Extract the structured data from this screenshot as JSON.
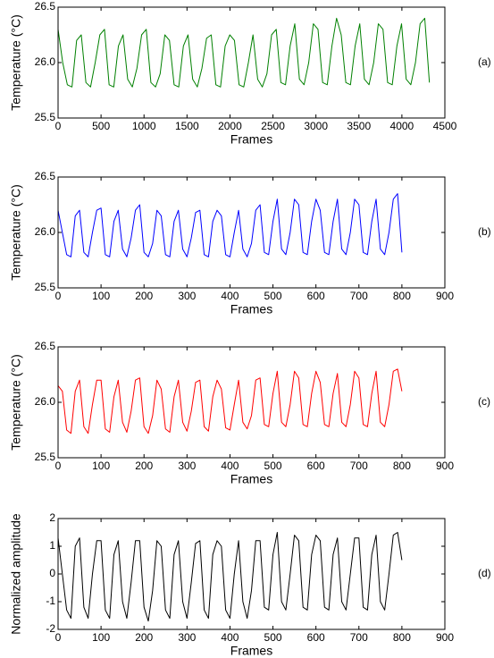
{
  "chart_data": [
    {
      "type": "line",
      "label": "(a)",
      "xlabel": "Frames",
      "ylabel": "Temperature (°C)",
      "color": "#008000",
      "xlim": [
        0,
        4500
      ],
      "xticks": [
        0,
        500,
        1000,
        1500,
        2000,
        2500,
        3000,
        3500,
        4000,
        4500
      ],
      "ylim": [
        25.5,
        26.5
      ],
      "yticks": [
        25.5,
        {
          "value": 26,
          "label": "26.0"
        },
        26.5
      ],
      "x": [
        0,
        54,
        108,
        162,
        216,
        270,
        324,
        378,
        432,
        486,
        540,
        594,
        648,
        702,
        756,
        810,
        864,
        918,
        972,
        1026,
        1080,
        1134,
        1188,
        1242,
        1296,
        1350,
        1404,
        1458,
        1512,
        1566,
        1620,
        1674,
        1728,
        1782,
        1836,
        1890,
        1944,
        1998,
        2052,
        2106,
        2160,
        2214,
        2268,
        2322,
        2376,
        2430,
        2484,
        2538,
        2592,
        2646,
        2700,
        2754,
        2808,
        2862,
        2916,
        2970,
        3024,
        3078,
        3132,
        3186,
        3240,
        3294,
        3348,
        3402,
        3456,
        3510,
        3564,
        3618,
        3672,
        3726,
        3780,
        3834,
        3888,
        3942,
        3996,
        4050,
        4104,
        4158,
        4212,
        4266,
        4320
      ],
      "values": [
        26.3,
        26.0,
        25.8,
        25.78,
        26.2,
        26.25,
        25.82,
        25.78,
        26.0,
        26.25,
        26.3,
        25.8,
        25.78,
        26.15,
        26.25,
        25.85,
        25.78,
        25.95,
        26.25,
        26.3,
        25.82,
        25.78,
        25.9,
        26.25,
        26.2,
        25.8,
        25.78,
        26.15,
        26.25,
        25.85,
        25.78,
        25.95,
        26.22,
        26.25,
        25.8,
        25.78,
        26.15,
        26.25,
        26.2,
        25.8,
        25.78,
        26.0,
        26.25,
        25.85,
        25.78,
        25.9,
        26.25,
        26.3,
        25.82,
        25.8,
        26.15,
        26.35,
        25.85,
        25.8,
        26.0,
        26.35,
        26.3,
        25.82,
        25.8,
        26.15,
        26.4,
        26.25,
        25.82,
        25.8,
        26.15,
        26.35,
        25.85,
        25.8,
        26.0,
        26.35,
        26.3,
        25.82,
        25.8,
        26.15,
        26.35,
        25.85,
        25.8,
        26.0,
        26.35,
        26.4,
        25.82
      ]
    },
    {
      "type": "line",
      "label": "(b)",
      "xlabel": "Frames",
      "ylabel": "Temperature (°C)",
      "color": "#0000ff",
      "xlim": [
        0,
        900
      ],
      "xticks": [
        0,
        100,
        200,
        300,
        400,
        500,
        600,
        700,
        800,
        900
      ],
      "ylim": [
        25.5,
        26.5
      ],
      "yticks": [
        25.5,
        {
          "value": 26,
          "label": "26.0"
        },
        26.5
      ],
      "x": [
        0,
        10,
        20,
        30,
        40,
        50,
        60,
        70,
        80,
        90,
        100,
        110,
        120,
        130,
        140,
        150,
        160,
        170,
        180,
        190,
        200,
        210,
        220,
        230,
        240,
        250,
        260,
        270,
        280,
        290,
        300,
        310,
        320,
        330,
        340,
        350,
        360,
        370,
        380,
        390,
        400,
        410,
        420,
        430,
        440,
        450,
        460,
        470,
        480,
        490,
        500,
        510,
        520,
        530,
        540,
        550,
        560,
        570,
        580,
        590,
        600,
        610,
        620,
        630,
        640,
        650,
        660,
        670,
        680,
        690,
        700,
        710,
        720,
        730,
        740,
        750,
        760,
        770,
        780,
        790,
        800
      ],
      "values": [
        26.2,
        26.0,
        25.8,
        25.78,
        26.15,
        26.2,
        25.82,
        25.78,
        26.0,
        26.2,
        26.22,
        25.8,
        25.78,
        26.1,
        26.2,
        25.85,
        25.78,
        25.95,
        26.2,
        26.25,
        25.82,
        25.78,
        25.9,
        26.2,
        26.15,
        25.8,
        25.78,
        26.1,
        26.2,
        25.85,
        25.78,
        25.95,
        26.18,
        26.2,
        25.8,
        25.78,
        26.1,
        26.2,
        26.15,
        25.8,
        25.78,
        26.0,
        26.2,
        25.85,
        25.78,
        25.9,
        26.2,
        26.25,
        25.82,
        25.8,
        26.1,
        26.3,
        25.85,
        25.8,
        26.0,
        26.3,
        26.25,
        25.82,
        25.8,
        26.1,
        26.3,
        26.2,
        25.82,
        25.8,
        26.1,
        26.3,
        25.85,
        25.8,
        26.0,
        26.3,
        26.25,
        25.82,
        25.8,
        26.1,
        26.3,
        25.85,
        25.8,
        26.0,
        26.3,
        26.35,
        25.82
      ]
    },
    {
      "type": "line",
      "label": "(c)",
      "xlabel": "Frames",
      "ylabel": "Temperature (°C)",
      "color": "#ff0000",
      "xlim": [
        0,
        900
      ],
      "xticks": [
        0,
        100,
        200,
        300,
        400,
        500,
        600,
        700,
        800,
        900
      ],
      "ylim": [
        25.5,
        26.5
      ],
      "yticks": [
        25.5,
        {
          "value": 26,
          "label": "26.0"
        },
        26.5
      ],
      "x": [
        0,
        10,
        20,
        30,
        40,
        50,
        60,
        70,
        80,
        90,
        100,
        110,
        120,
        130,
        140,
        150,
        160,
        170,
        180,
        190,
        200,
        210,
        220,
        230,
        240,
        250,
        260,
        270,
        280,
        290,
        300,
        310,
        320,
        330,
        340,
        350,
        360,
        370,
        380,
        390,
        400,
        410,
        420,
        430,
        440,
        450,
        460,
        470,
        480,
        490,
        500,
        510,
        520,
        530,
        540,
        550,
        560,
        570,
        580,
        590,
        600,
        610,
        620,
        630,
        640,
        650,
        660,
        670,
        680,
        690,
        700,
        710,
        720,
        730,
        740,
        750,
        760,
        770,
        780,
        790,
        800
      ],
      "values": [
        26.15,
        26.1,
        25.75,
        25.72,
        26.1,
        26.2,
        25.78,
        25.72,
        25.98,
        26.2,
        26.2,
        25.76,
        25.73,
        26.05,
        26.2,
        25.82,
        25.73,
        25.92,
        26.2,
        26.22,
        25.78,
        25.72,
        25.88,
        26.2,
        26.12,
        25.76,
        25.73,
        26.05,
        26.2,
        25.82,
        25.74,
        25.92,
        26.18,
        26.2,
        25.78,
        25.74,
        26.05,
        26.2,
        26.12,
        25.77,
        25.75,
        25.98,
        26.2,
        25.82,
        25.76,
        25.88,
        26.2,
        26.22,
        25.8,
        25.78,
        26.08,
        26.28,
        25.82,
        25.78,
        25.98,
        26.28,
        26.22,
        25.8,
        25.78,
        26.08,
        26.28,
        26.18,
        25.8,
        25.78,
        26.08,
        26.26,
        25.82,
        25.78,
        25.98,
        26.28,
        26.22,
        25.8,
        25.78,
        26.08,
        26.28,
        25.82,
        25.78,
        25.98,
        26.28,
        26.3,
        26.1
      ]
    },
    {
      "type": "line",
      "label": "(d)",
      "xlabel": "Frames",
      "ylabel": "Normalized amplitude",
      "color": "#000000",
      "xlim": [
        0,
        900
      ],
      "xticks": [
        0,
        100,
        200,
        300,
        400,
        500,
        600,
        700,
        800,
        900
      ],
      "ylim": [
        -2,
        2
      ],
      "yticks": [
        -2,
        -1,
        0,
        1,
        2
      ],
      "x": [
        0,
        10,
        20,
        30,
        40,
        50,
        60,
        70,
        80,
        90,
        100,
        110,
        120,
        130,
        140,
        150,
        160,
        170,
        180,
        190,
        200,
        210,
        220,
        230,
        240,
        250,
        260,
        270,
        280,
        290,
        300,
        310,
        320,
        330,
        340,
        350,
        360,
        370,
        380,
        390,
        400,
        410,
        420,
        430,
        440,
        450,
        460,
        470,
        480,
        490,
        500,
        510,
        520,
        530,
        540,
        550,
        560,
        570,
        580,
        590,
        600,
        610,
        620,
        630,
        640,
        650,
        660,
        670,
        680,
        690,
        700,
        710,
        720,
        730,
        740,
        750,
        760,
        770,
        780,
        790,
        800
      ],
      "values": [
        1.3,
        0,
        -1.3,
        -1.6,
        1.0,
        1.3,
        -1.2,
        -1.6,
        0,
        1.2,
        1.2,
        -1.3,
        -1.6,
        0.7,
        1.2,
        -1.0,
        -1.6,
        -0.3,
        1.2,
        1.2,
        -1.2,
        -1.7,
        -0.6,
        1.2,
        1.0,
        -1.3,
        -1.6,
        0.7,
        1.2,
        -1.0,
        -1.6,
        -0.3,
        1.1,
        1.2,
        -1.3,
        -1.6,
        0.7,
        1.2,
        1.0,
        -1.3,
        -1.6,
        0,
        1.2,
        -1.0,
        -1.6,
        -0.6,
        1.2,
        1.2,
        -1.2,
        -1.3,
        0.7,
        1.5,
        -1.0,
        -1.3,
        0,
        1.4,
        1.2,
        -1.2,
        -1.3,
        0.7,
        1.4,
        1.2,
        -1.2,
        -1.3,
        0.7,
        1.3,
        -1.0,
        -1.3,
        0,
        1.3,
        1.3,
        -1.2,
        -1.3,
        0.7,
        1.4,
        -1.0,
        -1.3,
        0,
        1.4,
        1.5,
        0.5
      ]
    }
  ]
}
